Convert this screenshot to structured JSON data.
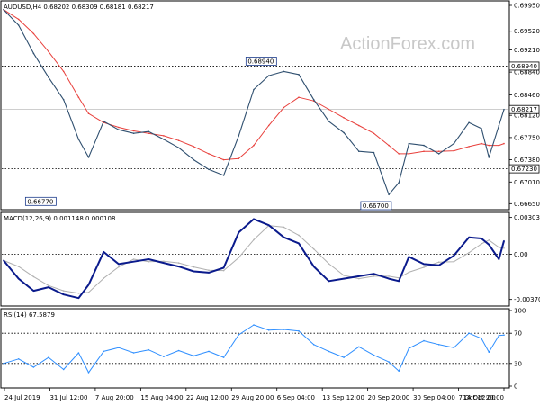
{
  "chart_data": {
    "type": "line",
    "watermark": "ActionForex.com",
    "colors": {
      "price": "#2f4f6f",
      "ma": "#e8403c",
      "macd": "#0a1a8c",
      "signal": "#b0b0b0",
      "rsi": "#2f8fff",
      "grid_dotted": "#000000",
      "panel_border": "#000000"
    },
    "x_ticks": [
      "24 Jul 2019",
      "31 Jul 12:00",
      "7 Aug 20:00",
      "15 Aug 04:00",
      "22 Aug 12:00",
      "29 Aug 20:00",
      "6 Sep 04:00",
      "13 Sep 12:00",
      "20 Sep 20:00",
      "30 Sep 04:00",
      "7 Oct 12:00",
      "14 Oct 20:00"
    ],
    "price": {
      "label": "AUDUSD,H4  0.68202 0.68309 0.68181 0.68217",
      "ylim": [
        0.6658,
        0.6998
      ],
      "y_ticks": [
        "0.69950",
        "0.69520",
        "0.69210",
        "0.68840",
        "0.68460",
        "0.68120",
        "0.67750",
        "0.67380",
        "0.67010",
        "0.66650"
      ],
      "y_tick_values": [
        0.6995,
        0.6952,
        0.6921,
        0.6884,
        0.6846,
        0.6812,
        0.6775,
        0.6738,
        0.6701,
        0.6665
      ],
      "current": {
        "label": "0.68217",
        "value": 0.68217
      },
      "hlines": [
        {
          "label": "0.68940",
          "value": 0.6894
        },
        {
          "label": "0.67230",
          "value": 0.6723
        }
      ],
      "annotations": [
        {
          "label": "0.66770",
          "x": 0.105,
          "value": 0.6677
        },
        {
          "label": "0.68940",
          "x": 0.515,
          "value": 0.6894
        },
        {
          "label": "0.66700",
          "x": 0.775,
          "value": 0.667
        }
      ],
      "x": [
        0,
        0.03,
        0.06,
        0.09,
        0.12,
        0.15,
        0.17,
        0.2,
        0.23,
        0.26,
        0.29,
        0.32,
        0.35,
        0.38,
        0.41,
        0.44,
        0.47,
        0.5,
        0.53,
        0.56,
        0.59,
        0.62,
        0.65,
        0.68,
        0.71,
        0.74,
        0.77,
        0.79,
        0.81,
        0.84,
        0.87,
        0.9,
        0.93,
        0.955,
        0.97,
        0.99,
        1.0
      ],
      "values": [
        0.6988,
        0.6962,
        0.6915,
        0.6875,
        0.6838,
        0.6772,
        0.6742,
        0.6802,
        0.6788,
        0.6782,
        0.6785,
        0.6772,
        0.6758,
        0.6738,
        0.6722,
        0.6712,
        0.6778,
        0.6855,
        0.6878,
        0.6885,
        0.688,
        0.6838,
        0.6802,
        0.6783,
        0.6752,
        0.675,
        0.668,
        0.67,
        0.6765,
        0.6762,
        0.6748,
        0.6765,
        0.68,
        0.679,
        0.6742,
        0.6795,
        0.68217
      ],
      "ma_values": [
        0.6988,
        0.6972,
        0.6948,
        0.6918,
        0.6885,
        0.6842,
        0.6815,
        0.68,
        0.6792,
        0.6786,
        0.6782,
        0.6778,
        0.677,
        0.676,
        0.6748,
        0.6738,
        0.674,
        0.6762,
        0.6795,
        0.6825,
        0.6842,
        0.6836,
        0.6822,
        0.6808,
        0.6795,
        0.6782,
        0.6762,
        0.6748,
        0.6748,
        0.6752,
        0.6752,
        0.6753,
        0.676,
        0.6765,
        0.6762,
        0.6762,
        0.6765
      ]
    },
    "macd": {
      "label": "MACD(12,26,9) 0.001148 0.000108",
      "ylim": [
        -0.0041,
        0.0033
      ],
      "y_ticks": [
        "0.003031",
        "0.00",
        "-0.003706"
      ],
      "y_tick_values": [
        0.003031,
        0.0,
        -0.003706
      ],
      "x": [
        0,
        0.03,
        0.06,
        0.09,
        0.12,
        0.15,
        0.17,
        0.2,
        0.23,
        0.26,
        0.29,
        0.32,
        0.35,
        0.38,
        0.41,
        0.44,
        0.47,
        0.5,
        0.53,
        0.56,
        0.59,
        0.62,
        0.65,
        0.68,
        0.71,
        0.74,
        0.77,
        0.79,
        0.81,
        0.84,
        0.87,
        0.9,
        0.93,
        0.955,
        0.97,
        0.99,
        1.0
      ],
      "values": [
        -0.0005,
        -0.002,
        -0.003,
        -0.0027,
        -0.0033,
        -0.0036,
        -0.0025,
        0.0002,
        -0.0008,
        -0.0006,
        -0.0004,
        -0.0007,
        -0.001,
        -0.0014,
        -0.0015,
        -0.0011,
        0.0018,
        0.0029,
        0.0024,
        0.0014,
        0.0009,
        -0.001,
        -0.0022,
        -0.002,
        -0.0018,
        -0.0016,
        -0.002,
        -0.0022,
        -0.0002,
        -0.0008,
        -0.0009,
        -0.0001,
        0.0014,
        0.0013,
        0.0008,
        -0.0004,
        0.0011
      ]
    },
    "rsi": {
      "label": "RSI(14) 67.5879",
      "ylim": [
        0,
        100
      ],
      "y_ticks": [
        "100",
        "70",
        "30",
        "0"
      ],
      "y_tick_values": [
        100,
        70,
        30,
        0
      ],
      "x": [
        0,
        0.03,
        0.06,
        0.09,
        0.12,
        0.15,
        0.17,
        0.2,
        0.23,
        0.26,
        0.29,
        0.32,
        0.35,
        0.38,
        0.41,
        0.44,
        0.47,
        0.5,
        0.53,
        0.56,
        0.59,
        0.62,
        0.65,
        0.68,
        0.71,
        0.74,
        0.77,
        0.79,
        0.81,
        0.84,
        0.87,
        0.9,
        0.93,
        0.955,
        0.97,
        0.99,
        1.0
      ],
      "values": [
        30,
        36,
        25,
        38,
        22,
        44,
        18,
        46,
        51,
        44,
        48,
        39,
        47,
        40,
        46,
        38,
        68,
        81,
        74,
        75,
        73,
        55,
        46,
        38,
        52,
        41,
        32,
        20,
        50,
        60,
        55,
        51,
        70,
        63,
        45,
        67,
        67.59
      ]
    }
  }
}
